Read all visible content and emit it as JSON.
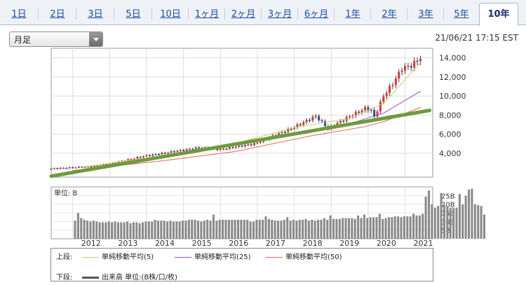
{
  "tabs": [
    {
      "label": "1日",
      "active": false
    },
    {
      "label": "2日",
      "active": false
    },
    {
      "label": "3日",
      "active": false
    },
    {
      "label": "5日",
      "active": false
    },
    {
      "label": "10日",
      "active": false
    },
    {
      "label": "1ヶ月",
      "active": false
    },
    {
      "label": "2ヶ月",
      "active": false
    },
    {
      "label": "3ヶ月",
      "active": false
    },
    {
      "label": "6ヶ月",
      "active": false
    },
    {
      "label": "1年",
      "active": false
    },
    {
      "label": "2年",
      "active": false
    },
    {
      "label": "3年",
      "active": false
    },
    {
      "label": "5年",
      "active": false
    },
    {
      "label": "10年",
      "active": true
    }
  ],
  "period_select": {
    "value": "月足"
  },
  "timestamp": "21/06/21 17:15 EST",
  "colors": {
    "tab_text": "#1a4fa3",
    "up": "#d83a3a",
    "down": "#2f4fa8",
    "trendline": "#6e9b3c",
    "ma5": "#c8cf6a",
    "ma25": "#8e4fd8",
    "ma50": "#e26c55",
    "volume": "#8a8a8a"
  },
  "legend": {
    "upper_label": "上段:",
    "lower_label": "下段:",
    "ma5": "単純移動平均(5)",
    "ma25": "単純移動平均(25)",
    "ma50": "単純移動平均(50)",
    "volume": "出来高 単位:(B株/口/枚)"
  },
  "chart_data": [
    {
      "type": "candlestick",
      "frequency": "monthly",
      "x_range": [
        "2011-06",
        "2021-06"
      ],
      "x_tick_labels": [
        "2012",
        "2013",
        "2014",
        "2015",
        "2016",
        "2017",
        "2018",
        "2019",
        "2020",
        "2021"
      ],
      "y_tick_labels": [
        "4,000",
        "6,000",
        "8,000",
        "10,000",
        "12,000",
        "14,000"
      ],
      "ylim": [
        1500,
        15000
      ],
      "grid": true,
      "approx_close_anchors": [
        {
          "x": "2011-06",
          "y": 2400
        },
        {
          "x": "2012-06",
          "y": 2600
        },
        {
          "x": "2013-01",
          "y": 2900
        },
        {
          "x": "2013-12",
          "y": 3700
        },
        {
          "x": "2014-12",
          "y": 4300
        },
        {
          "x": "2015-06",
          "y": 4600
        },
        {
          "x": "2016-01",
          "y": 4400
        },
        {
          "x": "2016-06",
          "y": 4700
        },
        {
          "x": "2016-12",
          "y": 5000
        },
        {
          "x": "2017-12",
          "y": 6600
        },
        {
          "x": "2018-08",
          "y": 7900
        },
        {
          "x": "2018-12",
          "y": 6600
        },
        {
          "x": "2019-06",
          "y": 7700
        },
        {
          "x": "2019-12",
          "y": 8700
        },
        {
          "x": "2020-02",
          "y": 8500
        },
        {
          "x": "2020-03",
          "y": 7800
        },
        {
          "x": "2020-06",
          "y": 10000
        },
        {
          "x": "2020-09",
          "y": 11300
        },
        {
          "x": "2020-12",
          "y": 12900
        },
        {
          "x": "2021-03",
          "y": 13200
        },
        {
          "x": "2021-06",
          "y": 14000
        }
      ],
      "series": [
        {
          "name": "単純移動平均(5)",
          "points": [
            {
              "x": "2012-04",
              "y": 2550
            },
            {
              "x": "2014-01",
              "y": 3500
            },
            {
              "x": "2016-01",
              "y": 4600
            },
            {
              "x": "2018-01",
              "y": 6700
            },
            {
              "x": "2019-06",
              "y": 7600
            },
            {
              "x": "2020-06",
              "y": 9200
            },
            {
              "x": "2021-06",
              "y": 13500
            }
          ]
        },
        {
          "name": "単純移動平均(25)",
          "points": [
            {
              "x": "2013-06",
              "y": 2800
            },
            {
              "x": "2015-06",
              "y": 4200
            },
            {
              "x": "2017-06",
              "y": 5500
            },
            {
              "x": "2019-06",
              "y": 7000
            },
            {
              "x": "2020-06",
              "y": 8200
            },
            {
              "x": "2021-06",
              "y": 10500
            }
          ]
        },
        {
          "name": "単純移動平均(50)",
          "points": [
            {
              "x": "2012-01",
              "y": 2200
            },
            {
              "x": "2014-06",
              "y": 3200
            },
            {
              "x": "2016-06",
              "y": 4200
            },
            {
              "x": "2018-06",
              "y": 5800
            },
            {
              "x": "2019-12",
              "y": 6800
            },
            {
              "x": "2020-06",
              "y": 7300
            },
            {
              "x": "2021-06",
              "y": 8800
            }
          ]
        },
        {
          "name": "trendline",
          "points": [
            {
              "x": "2011-06",
              "y": 1600
            },
            {
              "x": "2021-09",
              "y": 8500
            }
          ]
        }
      ]
    },
    {
      "type": "bar",
      "title": "単位: B",
      "y_tick_labels": [
        "25B",
        "20B",
        "15B",
        "10B",
        "5B"
      ],
      "ylim": [
        0,
        30
      ],
      "x_range": [
        "2011-06",
        "2021-06"
      ],
      "values": [
        10.5,
        15,
        12,
        11,
        10.5,
        10,
        10.5,
        10,
        9.5,
        9.5,
        9.5,
        10,
        9.5,
        10,
        9.5,
        9.5,
        9.5,
        10,
        9,
        9.5,
        9.5,
        9,
        9.5,
        10,
        10,
        10,
        11,
        10.5,
        10.5,
        10.5,
        10,
        10.5,
        10,
        10,
        10,
        10.5,
        10.5,
        11,
        11,
        11,
        10.5,
        10,
        10.5,
        11,
        10.5,
        14,
        10.5,
        11,
        11,
        11,
        11,
        11,
        11,
        11,
        11,
        11,
        11,
        10,
        10,
        11,
        11,
        11,
        13,
        11.5,
        11,
        10.5,
        10.5,
        10.5,
        11,
        12.5,
        10.5,
        11,
        10.5,
        11,
        11,
        11.5,
        10.5,
        11,
        10.5,
        11,
        11,
        12,
        11,
        13.5,
        11.5,
        11.5,
        11.5,
        12,
        12,
        12,
        12,
        11.5,
        13.5,
        12,
        14,
        12,
        12.5,
        12.5,
        12.5,
        14.5,
        11.5,
        12,
        12.5,
        12.5,
        13,
        13,
        12.5,
        13,
        13,
        13,
        14.5,
        13.5,
        13.5,
        14.5,
        24.5,
        28,
        20,
        18,
        19,
        26.5,
        19.5,
        19,
        18,
        18,
        18,
        26,
        20,
        25,
        28.5,
        29,
        20,
        19.5,
        19,
        14
      ]
    }
  ]
}
